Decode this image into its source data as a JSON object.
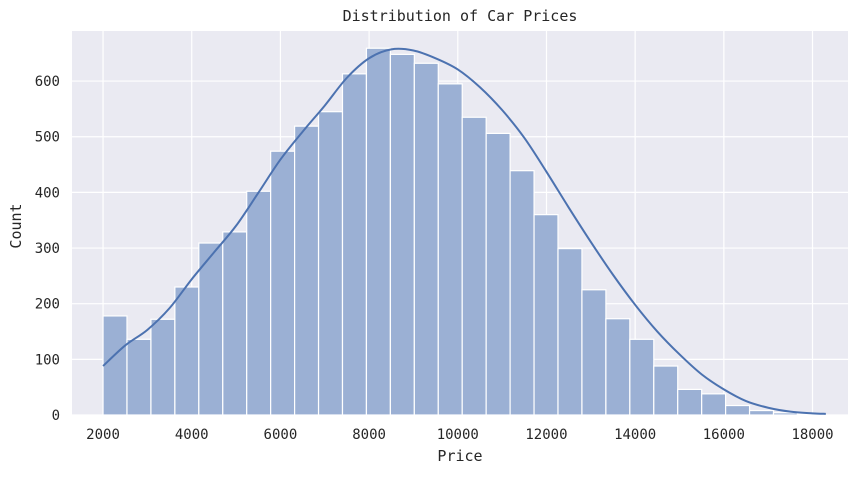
{
  "chart_data": {
    "type": "bar",
    "title": "Distribution of Car Prices",
    "xlabel": "Price",
    "ylabel": "Count",
    "xlim": [
      1300,
      18800
    ],
    "ylim": [
      0,
      690
    ],
    "x_ticks": [
      2000,
      4000,
      6000,
      8000,
      10000,
      12000,
      14000,
      16000,
      18000
    ],
    "y_ticks": [
      0,
      100,
      200,
      300,
      400,
      500,
      600
    ],
    "bin_start": 2000,
    "bin_width": 540,
    "values": [
      178,
      136,
      172,
      230,
      309,
      329,
      402,
      474,
      519,
      545,
      613,
      659,
      648,
      632,
      595,
      535,
      506,
      439,
      360,
      299,
      225,
      173,
      136,
      88,
      46,
      38,
      17,
      8,
      4,
      2
    ],
    "kde": {
      "x": [
        2000,
        2500,
        3000,
        3500,
        4000,
        4500,
        5000,
        5500,
        6000,
        6500,
        7000,
        7500,
        8000,
        8500,
        9000,
        9500,
        10000,
        10500,
        11000,
        11500,
        12000,
        12500,
        13000,
        13500,
        14000,
        14500,
        15000,
        15500,
        16000,
        16500,
        17000,
        17500,
        18000,
        18300
      ],
      "y": [
        88,
        125,
        153,
        192,
        244,
        292,
        340,
        399,
        459,
        509,
        556,
        606,
        641,
        657,
        655,
        641,
        621,
        589,
        548,
        498,
        437,
        373,
        311,
        252,
        198,
        150,
        109,
        73,
        46,
        25,
        13,
        6,
        3,
        2
      ]
    },
    "grid": true,
    "legend": "none",
    "colors": {
      "bar_fill": "#9bb0d4",
      "bar_edge": "#ffffff",
      "kde_line": "#4c72b0",
      "plot_background": "#eaeaf2",
      "grid": "#ffffff"
    }
  }
}
